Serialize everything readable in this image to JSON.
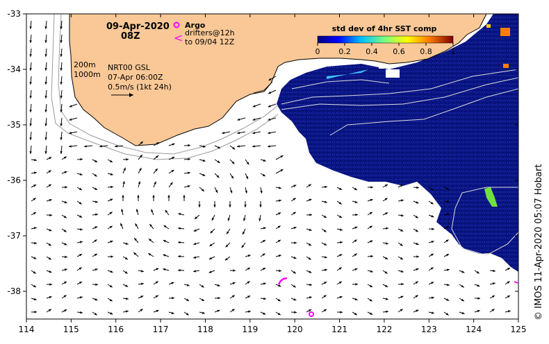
{
  "map": {
    "date": "09-Apr-2020",
    "hour": "08Z",
    "legend_argo": "Argo",
    "legend_drifters_1": "drifters@12h",
    "legend_drifters_2": "to 09/04 12Z",
    "contour_200": "200m",
    "contour_1000": "1000m",
    "product": "NRT00 GSL",
    "product_time": "07-Apr 06:00Z",
    "vector_scale": "0.5m/s (1kt 24h)",
    "colorbar_title": "std dev of 4hr SST comp",
    "colorbar_ticks": [
      "0",
      "0.2",
      "0.4",
      "0.6",
      "0.8",
      "1"
    ],
    "credit": "© IMOS 11-Apr-2020 05:07 Hobart",
    "x_ticks": [
      "114",
      "115",
      "116",
      "117",
      "118",
      "119",
      "120",
      "121",
      "122",
      "123",
      "124",
      "125"
    ],
    "y_ticks": [
      "-33",
      "-34",
      "-35",
      "-36",
      "-37",
      "-38"
    ],
    "lon_range": [
      114,
      125
    ],
    "lat_range": [
      -38.5,
      -33
    ],
    "colors": {
      "land": "#f9c896",
      "sst_low": "#0a1482",
      "argo": "#ff00ff",
      "drifter": "#ff00ff"
    }
  }
}
